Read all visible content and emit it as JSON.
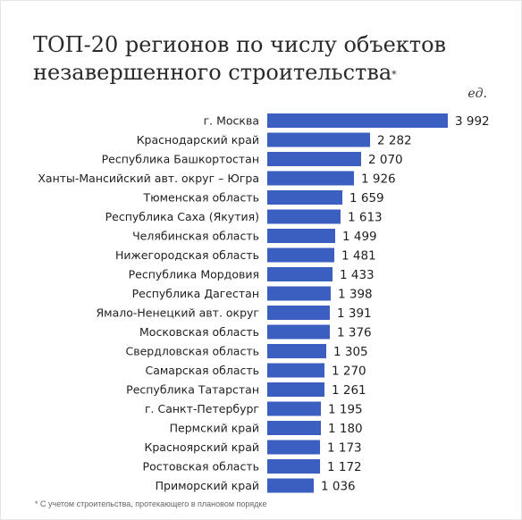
{
  "chart_data": {
    "type": "bar",
    "orientation": "horizontal",
    "title": "ТОП-20 регионов по числу объектов незавершенного строительства",
    "title_mark": "*",
    "unit": "ед.",
    "bar_color": "#3a5fc0",
    "categories": [
      "г. Москва",
      "Краснодарский край",
      "Республика Башкортостан",
      "Ханты-Мансийский авт. округ – Югра",
      "Тюменская область",
      "Республика Саха (Якутия)",
      "Челябинская область",
      "Нижегородская область",
      "Республика Мордовия",
      "Республика Дагестан",
      "Ямало-Ненецкий авт. округ",
      "Московская область",
      "Свердловская область",
      "Самарская область",
      "Республика Татарстан",
      "г. Санкт-Петербург",
      "Пермский край",
      "Красноярский край",
      "Ростовская область",
      "Приморский край"
    ],
    "values": [
      3992,
      2282,
      2070,
      1926,
      1659,
      1613,
      1499,
      1481,
      1433,
      1398,
      1391,
      1376,
      1305,
      1270,
      1261,
      1195,
      1180,
      1173,
      1172,
      1036
    ],
    "value_labels": [
      "3 992",
      "2 282",
      "2 070",
      "1 926",
      "1 659",
      "1 613",
      "1 499",
      "1 481",
      "1 433",
      "1 398",
      "1 391",
      "1 376",
      "1 305",
      "1 270",
      "1 261",
      "1 195",
      "1 180",
      "1 173",
      "1 172",
      "1 036"
    ],
    "xlim": [
      0,
      3992
    ],
    "grid": false,
    "legend": "none"
  },
  "footnote": "* С учетом строительства, протекающего в плановом порядке"
}
